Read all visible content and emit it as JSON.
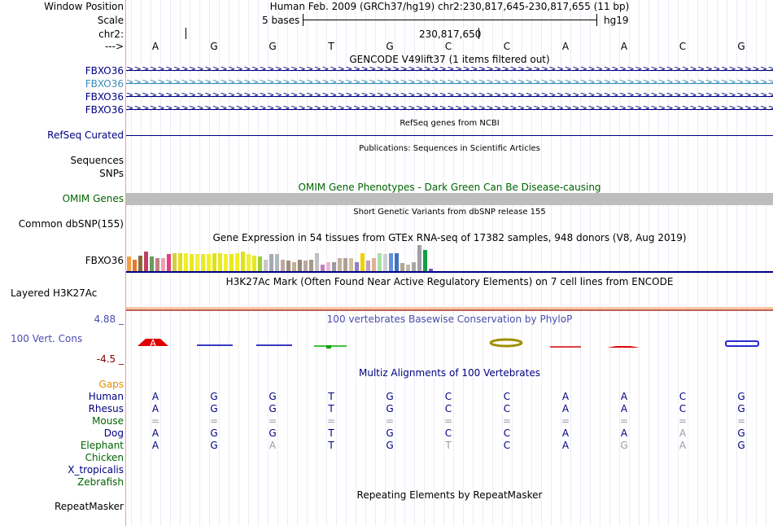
{
  "left_labels": {
    "window_position": "Window Position",
    "scale": "Scale",
    "chrom": "chr2:",
    "strand": "--->",
    "genes": [
      "FBXO36",
      "FBXO36",
      "FBXO36",
      "FBXO36"
    ],
    "refseq": "RefSeq Curated",
    "sequences": "Sequences",
    "snps": "SNPs",
    "omim": "OMIM Genes",
    "dbsnp": "Common dbSNP(155)",
    "gtex_gene": "FBXO36",
    "h3k27ac": "Layered H3K27Ac",
    "phylop_max": "4.88 _",
    "phylop_name": "100 Vert. Cons",
    "phylop_min": "-4.5 _",
    "gaps": "Gaps"
  },
  "header": {
    "assembly_text": "Human Feb. 2009 (GRCh37/hg19)   chr2:230,817,645-230,817,655 (11 bp)",
    "scale_bases": "5 bases",
    "scale_db": "hg19",
    "position_label": "230,817,650"
  },
  "bases": [
    "A",
    "G",
    "G",
    "T",
    "G",
    "C",
    "C",
    "A",
    "A",
    "C",
    "G"
  ],
  "tracks": {
    "gencode_title": "GENCODE V49lift37 (1 items filtered out)",
    "refseq_title": "RefSeq genes from NCBI",
    "publications_title": "Publications: Sequences in Scientific Articles",
    "omim_title": "OMIM Gene Phenotypes - Dark Green Can Be Disease-causing",
    "dbsnp_title": "Short Genetic Variants from dbSNP release 155",
    "gtex_title": "Gene Expression in 54 tissues from GTEx RNA-seq of 17382 samples, 948 donors (V8, Aug 2019)",
    "h3k27ac_title": "H3K27Ac Mark (Often Found Near Active Regulatory Elements) on 7 cell lines from ENCODE",
    "phylop_title": "100 vertebrates Basewise Conservation by PhyloP",
    "multiz_title": "Multiz Alignments of 100 Vertebrates",
    "repeat_title": "Repeating Elements by RepeatMasker"
  },
  "repeatmasker_label": "RepeatMasker",
  "alignments": [
    {
      "species": "Human",
      "bases": [
        "A",
        "G",
        "G",
        "T",
        "G",
        "C",
        "C",
        "A",
        "A",
        "C",
        "G"
      ],
      "match": [
        1,
        1,
        1,
        1,
        1,
        1,
        1,
        1,
        1,
        1,
        1
      ]
    },
    {
      "species": "Rhesus",
      "bases": [
        "A",
        "G",
        "G",
        "T",
        "G",
        "C",
        "C",
        "A",
        "A",
        "C",
        "G"
      ],
      "match": [
        1,
        1,
        1,
        1,
        1,
        1,
        1,
        1,
        1,
        1,
        1
      ]
    },
    {
      "species": "Mouse",
      "bases": [
        "=",
        "=",
        "=",
        "=",
        "=",
        "=",
        "=",
        "=",
        "=",
        "=",
        "="
      ],
      "match": [
        0,
        0,
        0,
        0,
        0,
        0,
        0,
        0,
        0,
        0,
        0
      ]
    },
    {
      "species": "Dog",
      "bases": [
        "A",
        "G",
        "G",
        "T",
        "G",
        "C",
        "C",
        "A",
        "A",
        "A",
        "G"
      ],
      "match": [
        1,
        1,
        1,
        1,
        1,
        1,
        1,
        1,
        1,
        0,
        1
      ]
    },
    {
      "species": "Elephant",
      "bases": [
        "A",
        "G",
        "A",
        "T",
        "G",
        "T",
        "C",
        "A",
        "G",
        "A",
        "G"
      ],
      "match": [
        1,
        1,
        0,
        1,
        1,
        0,
        1,
        1,
        0,
        0,
        1
      ]
    },
    {
      "species": "Chicken",
      "bases": [],
      "match": []
    },
    {
      "species": "X_tropicalis",
      "bases": [],
      "match": []
    },
    {
      "species": "Zebrafish",
      "bases": [],
      "match": []
    }
  ],
  "colors": {
    "track_blue": "#000080",
    "gencode_light": "#3a8cb8",
    "omim_green": "#006400",
    "gaps_orange": "#e09000",
    "phylop_title": "#4b4bae",
    "phylop_neg": "#800000",
    "mismatch_gray": "#9a9aa8",
    "h3k27ac_orange": "#f0b080"
  },
  "gtex_expression": [
    {
      "color": "#f0a040",
      "value": 0.55
    },
    {
      "color": "#e8782c",
      "value": 0.45
    },
    {
      "color": "#8a6a3a",
      "value": 0.6
    },
    {
      "color": "#c04060",
      "value": 0.75
    },
    {
      "color": "#6a9a60",
      "value": 0.55
    },
    {
      "color": "#c08080",
      "value": 0.5
    },
    {
      "color": "#f0a0b0",
      "value": 0.5
    },
    {
      "color": "#e04080",
      "value": 0.65
    },
    {
      "color": "#d0d040",
      "value": 0.7
    },
    {
      "color": "#e0e020",
      "value": 0.7
    },
    {
      "color": "#f0f020",
      "value": 0.7
    },
    {
      "color": "#e8e820",
      "value": 0.65
    },
    {
      "color": "#f0f040",
      "value": 0.65
    },
    {
      "color": "#e8e830",
      "value": 0.65
    },
    {
      "color": "#f0f020",
      "value": 0.65
    },
    {
      "color": "#e0e020",
      "value": 0.7
    },
    {
      "color": "#e8e820",
      "value": 0.7
    },
    {
      "color": "#f0f030",
      "value": 0.65
    },
    {
      "color": "#e8e820",
      "value": 0.65
    },
    {
      "color": "#f0f020",
      "value": 0.7
    },
    {
      "color": "#e0e020",
      "value": 0.75
    },
    {
      "color": "#f0f030",
      "value": 0.65
    },
    {
      "color": "#e8e820",
      "value": 0.6
    },
    {
      "color": "#9ad030",
      "value": 0.55
    },
    {
      "color": "#c8c8c8",
      "value": 0.45
    },
    {
      "color": "#a8a8b0",
      "value": 0.65
    },
    {
      "color": "#b0b8c0",
      "value": 0.65
    },
    {
      "color": "#c0a8a0",
      "value": 0.45
    },
    {
      "color": "#a09080",
      "value": 0.4
    },
    {
      "color": "#c0b090",
      "value": 0.35
    },
    {
      "color": "#9a8a78",
      "value": 0.45
    },
    {
      "color": "#b8a8a0",
      "value": 0.4
    },
    {
      "color": "#a89888",
      "value": 0.45
    },
    {
      "color": "#c0c0c0",
      "value": 0.7
    },
    {
      "color": "#c080c0",
      "value": 0.25
    },
    {
      "color": "#e8b8d0",
      "value": 0.35
    },
    {
      "color": "#a098a0",
      "value": 0.35
    },
    {
      "color": "#c0b0a0",
      "value": 0.5
    },
    {
      "color": "#b0a090",
      "value": 0.5
    },
    {
      "color": "#d0c0a0",
      "value": 0.5
    },
    {
      "color": "#9080c0",
      "value": 0.35
    },
    {
      "color": "#f0d000",
      "value": 0.7
    },
    {
      "color": "#c0a0c0",
      "value": 0.4
    },
    {
      "color": "#e0b090",
      "value": 0.5
    },
    {
      "color": "#a8e0a8",
      "value": 0.7
    },
    {
      "color": "#d0d0d0",
      "value": 0.65
    },
    {
      "color": "#6090e0",
      "value": 0.7
    },
    {
      "color": "#4070c0",
      "value": 0.7
    },
    {
      "color": "#b0a890",
      "value": 0.3
    },
    {
      "color": "#c0b8a8",
      "value": 0.25
    },
    {
      "color": "#a8a8a8",
      "value": 0.35
    },
    {
      "color": "#a0a0a8",
      "value": 1.0
    },
    {
      "color": "#10a040",
      "value": 0.8
    },
    {
      "color": "#8050c0",
      "value": 0.1
    }
  ]
}
